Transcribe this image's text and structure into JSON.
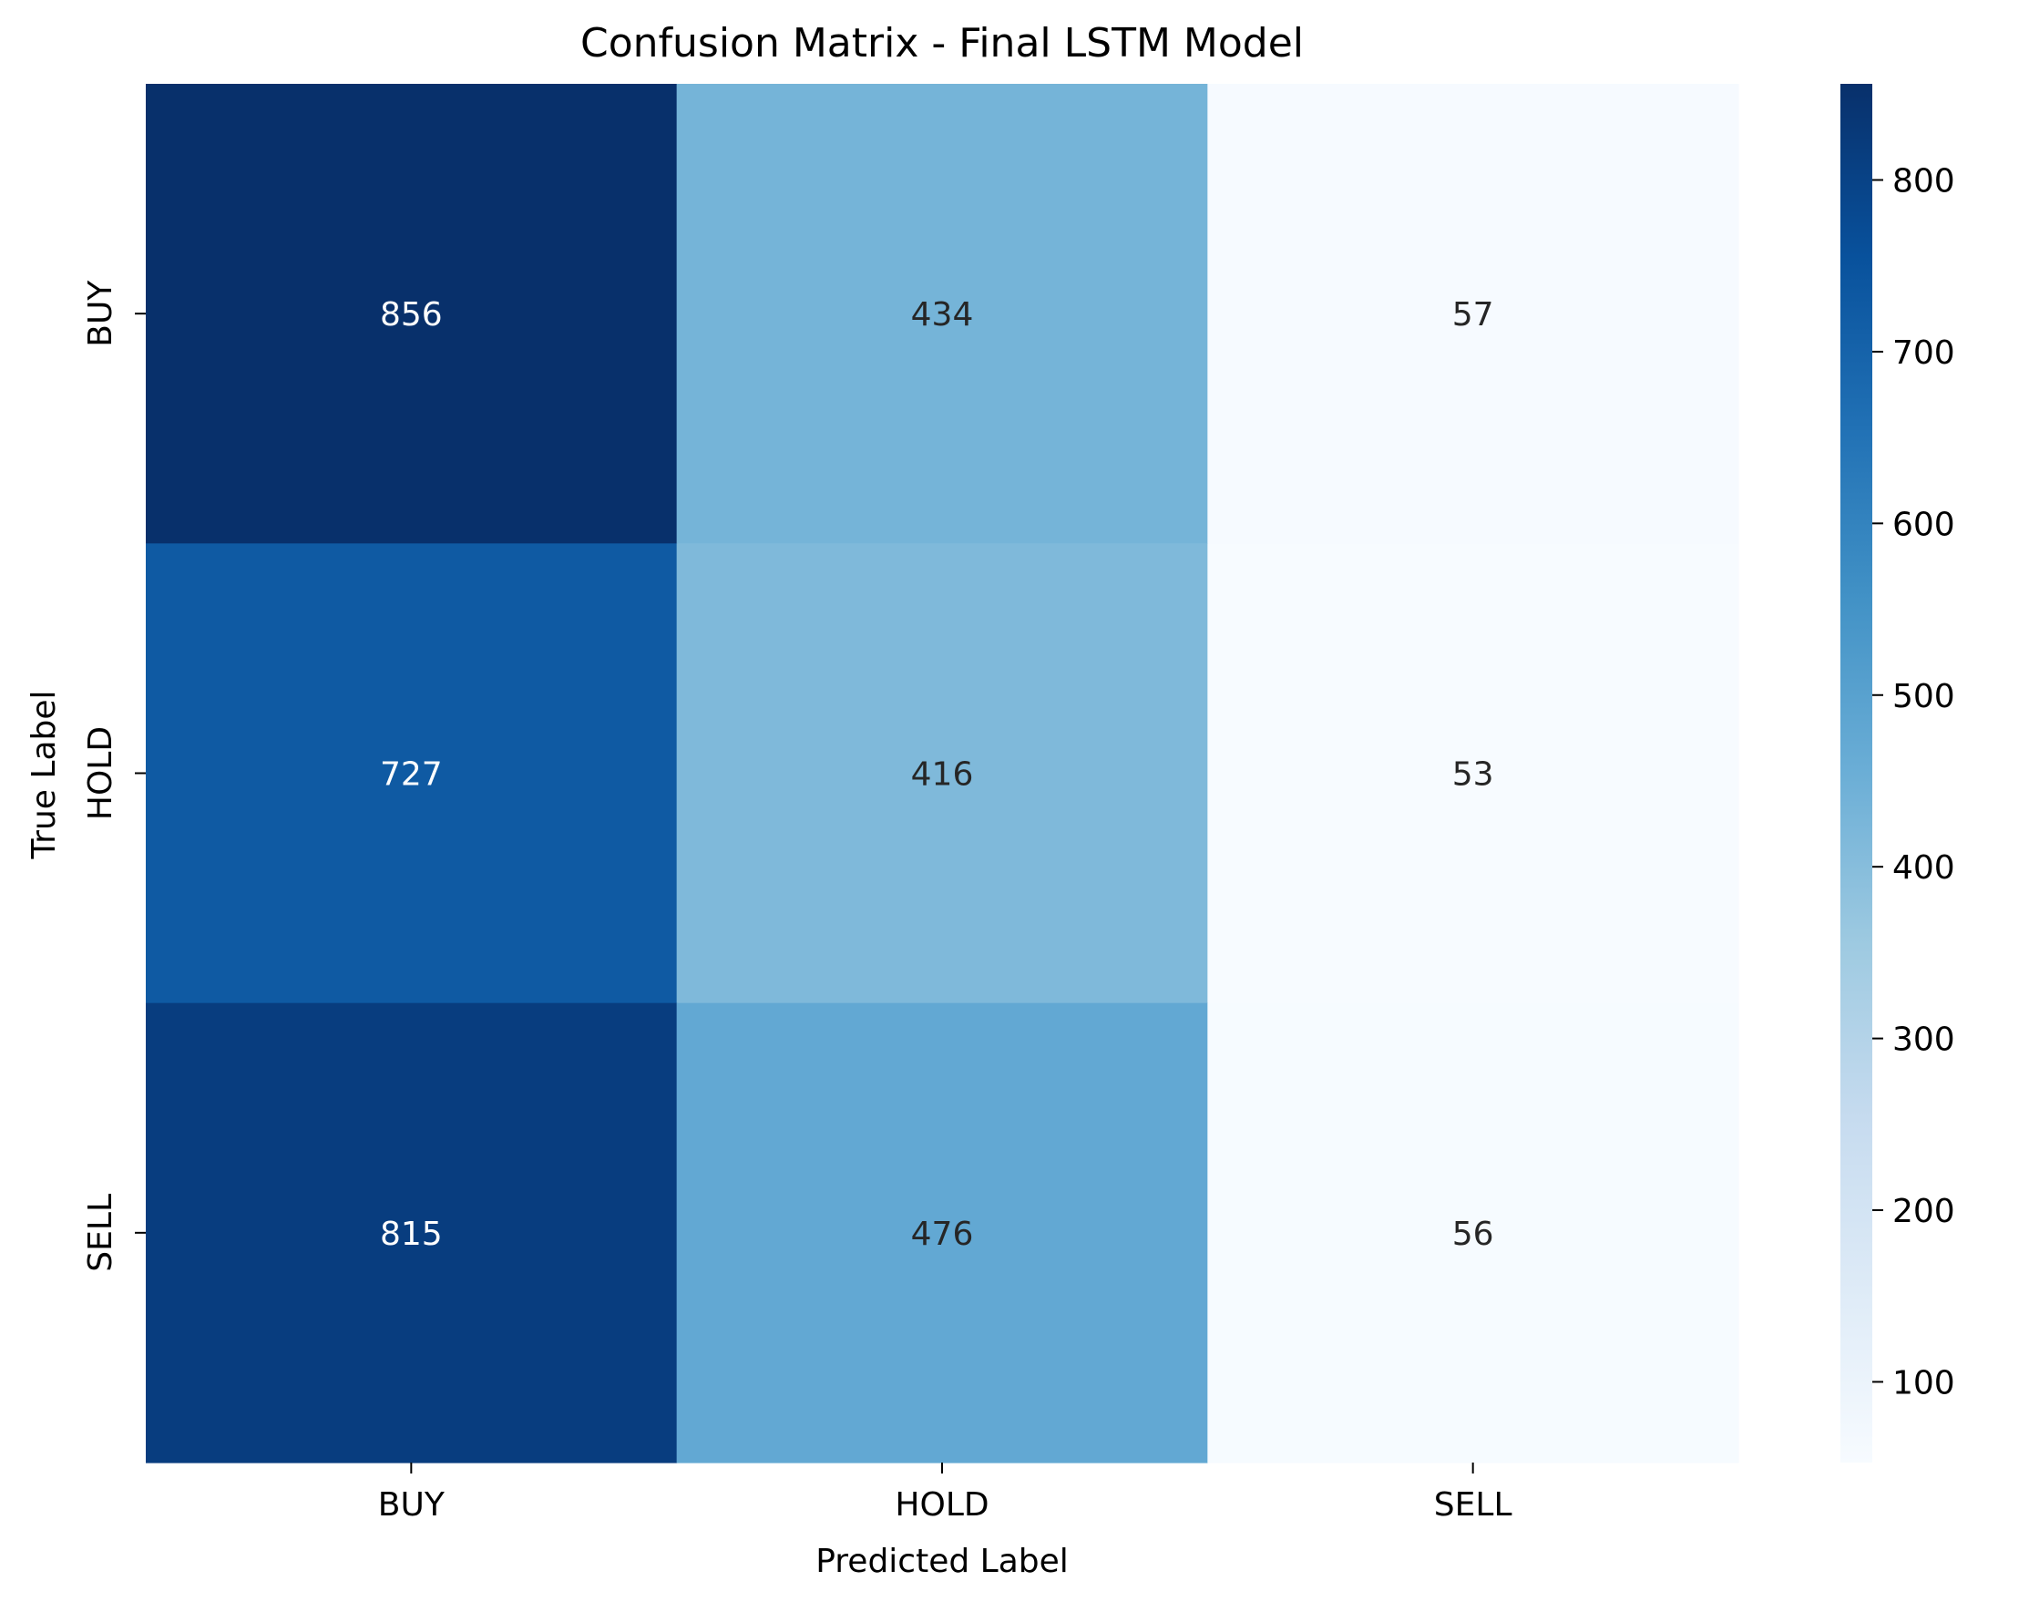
{
  "chart_data": {
    "type": "heatmap",
    "title": "Confusion Matrix - Final LSTM Model",
    "xlabel": "Predicted Label",
    "ylabel": "True Label",
    "x_categories": [
      "BUY",
      "HOLD",
      "SELL"
    ],
    "y_categories": [
      "BUY",
      "HOLD",
      "SELL"
    ],
    "values": [
      [
        856,
        434,
        57
      ],
      [
        727,
        416,
        53
      ],
      [
        815,
        476,
        56
      ]
    ],
    "colormap": "Blues",
    "colorbar": {
      "range": [
        53,
        856
      ],
      "ticks": [
        100,
        200,
        300,
        400,
        500,
        600,
        700,
        800
      ]
    },
    "colors": {
      "text_light": "#ffffff",
      "text_dark": "#262626"
    }
  }
}
